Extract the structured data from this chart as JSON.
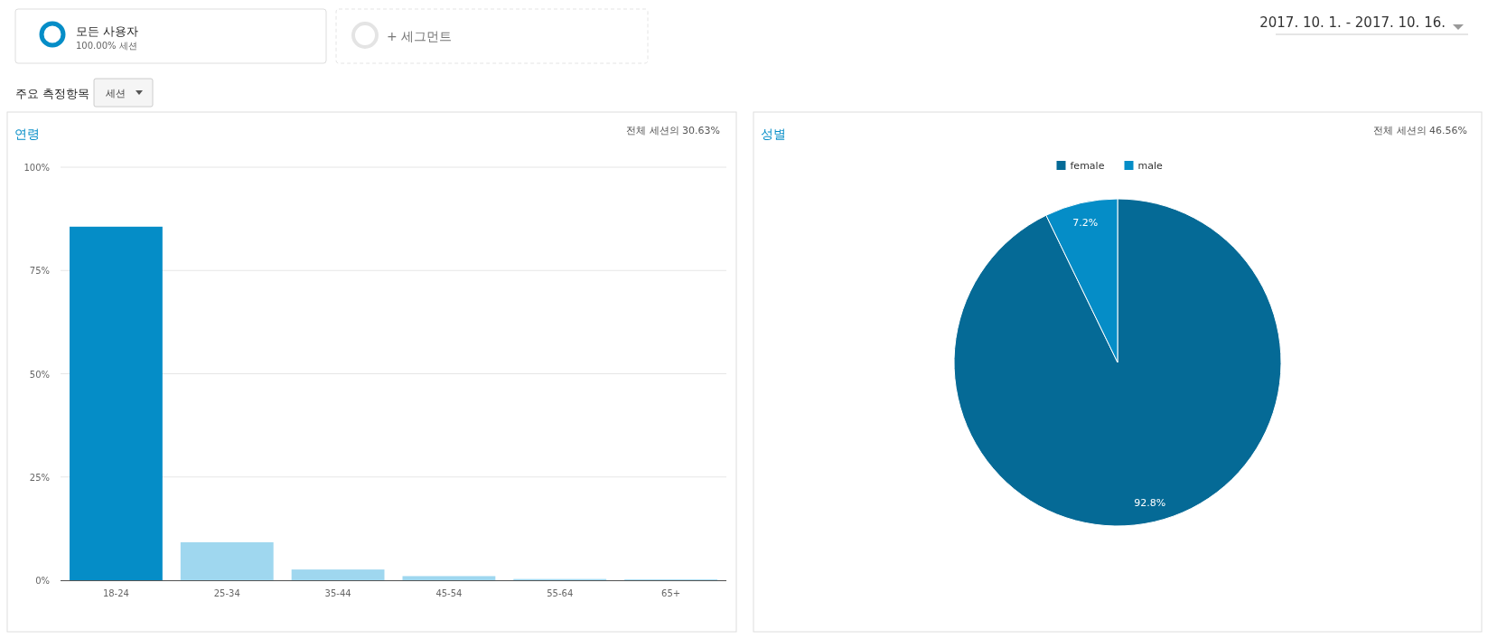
{
  "chart_data": [
    {
      "type": "other",
      "annotations": [
        "모든 사용자",
        "100.00% 세션",
        "+ 세그먼트",
        "주요 측정항목",
        "세션",
        "2017. 10. 1. - 2017. 10. 16."
      ]
    },
    {
      "type": "bar",
      "title": "연령",
      "subtitle": "전체 세션의 30.63%",
      "categories": [
        "18-24",
        "25-34",
        "35-44",
        "45-54",
        "55-64",
        "65+"
      ],
      "values": [
        85.6,
        9.2,
        2.6,
        1.0,
        0.3,
        0.2
      ],
      "colors": [
        "#058dc7",
        "#9fd7ef",
        "#9fd7ef",
        "#9fd7ef",
        "#9fd7ef",
        "#9fd7ef"
      ],
      "ylim": [
        0,
        100
      ],
      "yticks": [
        {
          "value": 0,
          "label": "0%"
        },
        {
          "value": 25,
          "label": "25%"
        },
        {
          "value": 50,
          "label": "50%"
        },
        {
          "value": 75,
          "label": "75%"
        },
        {
          "value": 100,
          "label": "100%"
        }
      ],
      "grid": "y"
    },
    {
      "type": "pie",
      "title": "성별",
      "subtitle": "전체 세션의 46.56%",
      "categories": [
        "female",
        "male"
      ],
      "values": [
        92.8,
        7.2
      ],
      "colors": [
        "#056a96",
        "#058dc7"
      ],
      "value_labels": [
        "92.8%",
        "7.2%"
      ],
      "legend": "top"
    }
  ]
}
